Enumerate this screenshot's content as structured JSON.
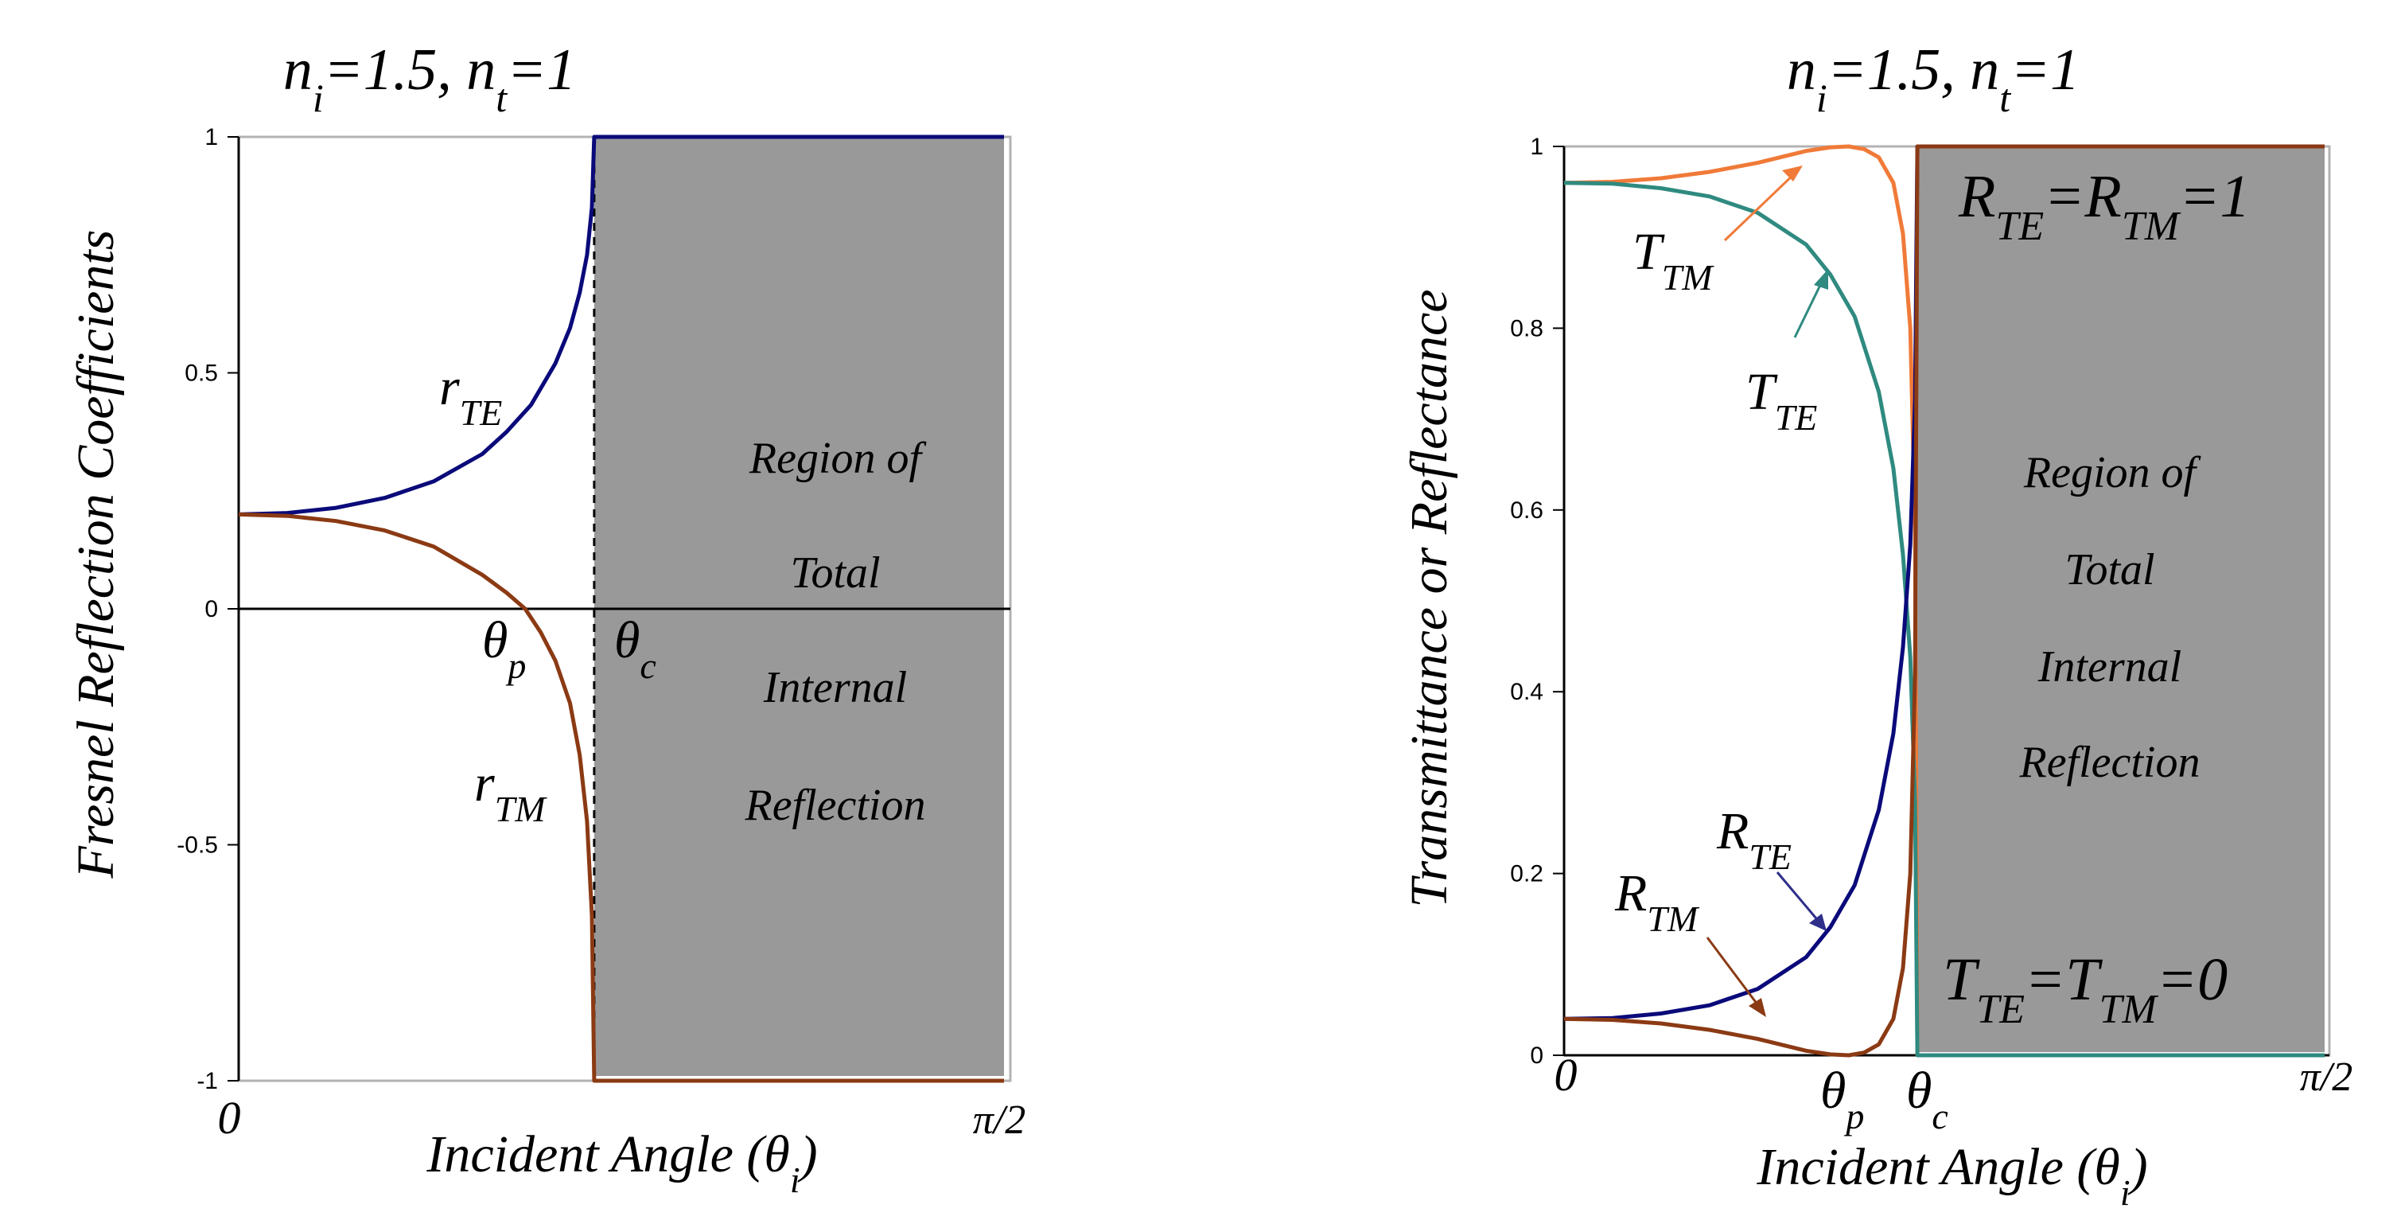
{
  "chart_data": [
    {
      "type": "line",
      "title": {
        "n1": "n",
        "n1_sub": "i",
        "eq1": "=1.5, n",
        "n2_sub": "t",
        "eq2": "=1"
      },
      "ylabel": "Fresnel Reflection Coefficients",
      "xlabel": {
        "main": "Incident Angle (θ",
        "sub": "i",
        "close": ")"
      },
      "x_tick_labels": [
        "0",
        "π/2"
      ],
      "xlim_rad": [
        0,
        1.5708
      ],
      "ylim": [
        -1,
        1
      ],
      "y_ticks": [
        {
          "value": 1,
          "label": "1"
        },
        {
          "value": 0.5,
          "label": "0.5"
        },
        {
          "value": 0,
          "label": "0"
        },
        {
          "value": -0.5,
          "label": "-0.5"
        },
        {
          "value": -1,
          "label": "-1"
        }
      ],
      "critical_angle_rad": 0.7297,
      "brewster_angle_rad": 0.588,
      "region_text": [
        "Region of",
        "Total",
        "Internal",
        "Reflection"
      ],
      "region_color": "#999999",
      "markers": {
        "theta_p": {
          "main": "θ",
          "sub": "p"
        },
        "theta_c": {
          "main": "θ",
          "sub": "c"
        }
      },
      "series": [
        {
          "label_main": "r",
          "label_sub": "TE",
          "color": "#0a0a7a",
          "x_rad": [
            0,
            0.1,
            0.2,
            0.3,
            0.4,
            0.5,
            0.55,
            0.6,
            0.65,
            0.68,
            0.7,
            0.715,
            0.725,
            0.7297,
            1.5708
          ],
          "values": [
            0.2,
            0.203,
            0.214,
            0.235,
            0.27,
            0.328,
            0.375,
            0.432,
            0.52,
            0.595,
            0.67,
            0.75,
            0.85,
            1.0,
            1.0
          ]
        },
        {
          "label_main": "r",
          "label_sub": "TM",
          "color": "#8b3a14",
          "x_rad": [
            0,
            0.1,
            0.2,
            0.3,
            0.4,
            0.5,
            0.55,
            0.588,
            0.62,
            0.65,
            0.68,
            0.7,
            0.715,
            0.725,
            0.7297,
            1.5708
          ],
          "values": [
            0.2,
            0.197,
            0.186,
            0.166,
            0.132,
            0.072,
            0.034,
            0.0,
            -0.05,
            -0.11,
            -0.2,
            -0.31,
            -0.45,
            -0.65,
            -1.0,
            -1.0
          ]
        }
      ]
    },
    {
      "type": "line",
      "title": {
        "n1": "n",
        "n1_sub": "i",
        "eq1": "=1.5, n",
        "n2_sub": "t",
        "eq2": "=1"
      },
      "ylabel": "Transmittance or Reflectance",
      "xlabel": {
        "main": "Incident Angle (θ",
        "sub": "i",
        "close": ")"
      },
      "x_tick_labels": [
        "0",
        "π/2"
      ],
      "xlim_rad": [
        0,
        1.5708
      ],
      "ylim": [
        0,
        1
      ],
      "y_ticks": [
        {
          "value": 1,
          "label": "1"
        },
        {
          "value": 0.8,
          "label": "0.8"
        },
        {
          "value": 0.6,
          "label": "0.6"
        },
        {
          "value": 0.4,
          "label": "0.4"
        },
        {
          "value": 0.2,
          "label": "0.2"
        },
        {
          "value": 0,
          "label": "0"
        }
      ],
      "critical_angle_rad": 0.7297,
      "brewster_angle_rad": 0.588,
      "region_text": [
        "Region of",
        "Total",
        "Internal",
        "Reflection"
      ],
      "region_color": "#999999",
      "markers": {
        "theta_p": {
          "main": "θ",
          "sub": "p"
        },
        "theta_c": {
          "main": "θ",
          "sub": "c"
        }
      },
      "annotations": {
        "rr": {
          "r1": "R",
          "s1": "TE",
          "eq": "=R",
          "s2": "TM",
          "tail": "=1"
        },
        "tt": {
          "t1": "T",
          "s1": "TE",
          "eq": "=T",
          "s2": "TM",
          "tail": "=0"
        }
      },
      "series": [
        {
          "label_main": "T",
          "label_sub": "TM",
          "color": "#f07a38",
          "x_rad": [
            0,
            0.1,
            0.2,
            0.3,
            0.4,
            0.5,
            0.55,
            0.588,
            0.62,
            0.65,
            0.68,
            0.7,
            0.715,
            0.725,
            0.7297,
            1.5708
          ],
          "values": [
            0.96,
            0.961,
            0.965,
            0.972,
            0.982,
            0.995,
            0.999,
            1.0,
            0.997,
            0.988,
            0.96,
            0.904,
            0.8,
            0.58,
            0.0,
            0.0
          ]
        },
        {
          "label_main": "T",
          "label_sub": "TE",
          "color": "#2f8a80",
          "x_rad": [
            0,
            0.1,
            0.2,
            0.3,
            0.4,
            0.5,
            0.55,
            0.6,
            0.65,
            0.68,
            0.7,
            0.715,
            0.725,
            0.7297,
            1.5708
          ],
          "values": [
            0.96,
            0.959,
            0.954,
            0.945,
            0.927,
            0.892,
            0.859,
            0.813,
            0.73,
            0.646,
            0.551,
            0.438,
            0.278,
            0.0,
            0.0
          ]
        },
        {
          "label_main": "R",
          "label_sub": "TE",
          "color": "#0a0a7a",
          "x_rad": [
            0,
            0.1,
            0.2,
            0.3,
            0.4,
            0.5,
            0.55,
            0.6,
            0.65,
            0.68,
            0.7,
            0.715,
            0.725,
            0.7297,
            1.5708
          ],
          "values": [
            0.04,
            0.041,
            0.046,
            0.055,
            0.073,
            0.108,
            0.141,
            0.187,
            0.27,
            0.354,
            0.449,
            0.562,
            0.722,
            1.0,
            1.0
          ]
        },
        {
          "label_main": "R",
          "label_sub": "TM",
          "color": "#8b3a14",
          "x_rad": [
            0,
            0.1,
            0.2,
            0.3,
            0.4,
            0.5,
            0.55,
            0.588,
            0.62,
            0.65,
            0.68,
            0.7,
            0.715,
            0.725,
            0.7297,
            1.5708
          ],
          "values": [
            0.04,
            0.039,
            0.035,
            0.028,
            0.018,
            0.005,
            0.001,
            0.0,
            0.003,
            0.012,
            0.04,
            0.096,
            0.2,
            0.42,
            1.0,
            1.0
          ]
        }
      ]
    }
  ]
}
